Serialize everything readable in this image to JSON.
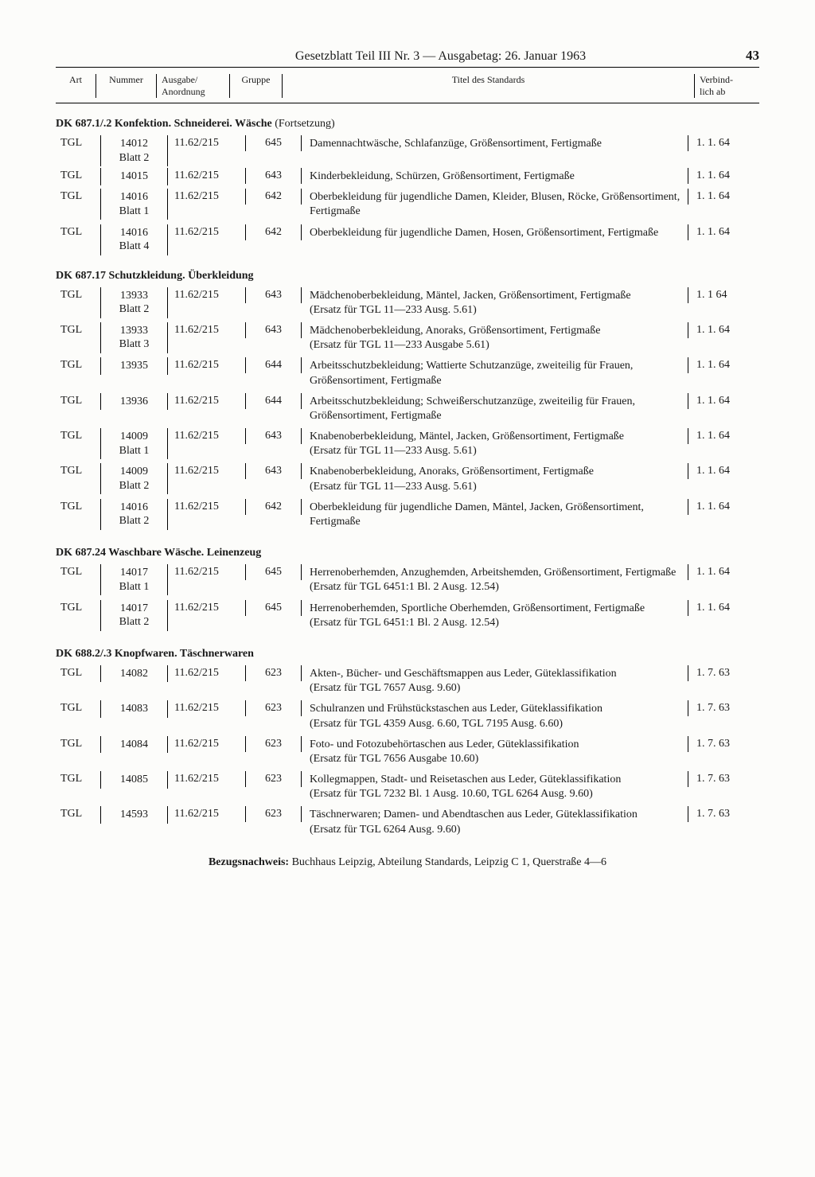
{
  "header": {
    "title": "Gesetzblatt Teil III Nr. 3 — Ausgabetag: 26. Januar 1963",
    "page_number": "43"
  },
  "columns": {
    "art": "Art",
    "nummer": "Nummer",
    "ausgabe": "Ausgabe/\nAnordnung",
    "gruppe": "Gruppe",
    "titel": "Titel des Standards",
    "verbind": "Verbind-\nlich ab"
  },
  "sections": [
    {
      "title": "DK 687.1/.2 Konfektion. Schneiderei. Wäsche",
      "cont": " (Fortsetzung)",
      "rows": [
        {
          "art": "TGL",
          "nummer": "14012\nBlatt 2",
          "ausgabe": "11.62/215",
          "gruppe": "645",
          "titel": "Damennachtwäsche, Schlafanzüge, Größensortiment, Fertigmaße",
          "verbind": "1. 1. 64"
        },
        {
          "art": "TGL",
          "nummer": "14015",
          "ausgabe": "11.62/215",
          "gruppe": "643",
          "titel": "Kinderbekleidung, Schürzen, Größensortiment, Fertigmaße",
          "verbind": "1. 1. 64"
        },
        {
          "art": "TGL",
          "nummer": "14016\nBlatt 1",
          "ausgabe": "11.62/215",
          "gruppe": "642",
          "titel": "Oberbekleidung für jugendliche Damen, Kleider, Blusen, Röcke, Größensortiment, Fertigmaße",
          "verbind": "1. 1. 64"
        },
        {
          "art": "TGL",
          "nummer": "14016\nBlatt 4",
          "ausgabe": "11.62/215",
          "gruppe": "642",
          "titel": "Oberbekleidung für jugendliche Damen, Hosen, Größensortiment, Fertigmaße",
          "verbind": "1. 1. 64"
        }
      ]
    },
    {
      "title": "DK 687.17 Schutzkleidung. Überkleidung",
      "cont": "",
      "rows": [
        {
          "art": "TGL",
          "nummer": "13933\nBlatt 2",
          "ausgabe": "11.62/215",
          "gruppe": "643",
          "titel": "Mädchenoberbekleidung, Mäntel, Jacken, Größensortiment, Fertigmaße\n(Ersatz für TGL 11—233 Ausg. 5.61)",
          "verbind": "1. 1  64"
        },
        {
          "art": "TGL",
          "nummer": "13933\nBlatt 3",
          "ausgabe": "11.62/215",
          "gruppe": "643",
          "titel": "Mädchenoberbekleidung, Anoraks, Größensortiment, Fertigmaße\n(Ersatz für TGL  11—233 Ausgabe 5.61)",
          "verbind": "1. 1. 64"
        },
        {
          "art": "TGL",
          "nummer": "13935",
          "ausgabe": "11.62/215",
          "gruppe": "644",
          "titel": "Arbeitsschutzbekleidung; Wattierte Schutzanzüge, zweiteilig für Frauen, Größensortiment, Fertigmaße",
          "verbind": "1. 1. 64"
        },
        {
          "art": "TGL",
          "nummer": "13936",
          "ausgabe": "11.62/215",
          "gruppe": "644",
          "titel": "Arbeitsschutzbekleidung; Schweißerschutzanzüge, zweiteilig für Frauen, Größensortiment, Fertigmaße",
          "verbind": "1. 1. 64"
        },
        {
          "art": "TGL",
          "nummer": "14009\nBlatt 1",
          "ausgabe": "11.62/215",
          "gruppe": "643",
          "titel": "Knabenoberbekleidung, Mäntel, Jacken, Größensortiment, Fertigmaße\n(Ersatz für TGL 11—233 Ausg. 5.61)",
          "verbind": "1. 1. 64"
        },
        {
          "art": "TGL",
          "nummer": "14009\nBlatt 2",
          "ausgabe": "11.62/215",
          "gruppe": "643",
          "titel": "Knabenoberbekleidung, Anoraks, Größensortiment, Fertigmaße\n(Ersatz für TGL 11—233 Ausg. 5.61)",
          "verbind": "1. 1. 64"
        },
        {
          "art": "TGL",
          "nummer": "14016\nBlatt 2",
          "ausgabe": "11.62/215",
          "gruppe": "642",
          "titel": "Oberbekleidung für jugendliche Damen, Mäntel, Jacken, Größensortiment, Fertigmaße",
          "verbind": "1. 1. 64"
        }
      ]
    },
    {
      "title": "DK 687.24 Waschbare Wäsche. Leinenzeug",
      "cont": "",
      "rows": [
        {
          "art": "TGL",
          "nummer": "14017\nBlatt 1",
          "ausgabe": "11.62/215",
          "gruppe": "645",
          "titel": "Herrenoberhemden, Anzughemden, Arbeitshemden, Größensortiment, Fertigmaße\n(Ersatz für TGL 6451:1 Bl. 2 Ausg. 12.54)",
          "verbind": "1. 1. 64"
        },
        {
          "art": "TGL",
          "nummer": "14017\nBlatt 2",
          "ausgabe": "11.62/215",
          "gruppe": "645",
          "titel": "Herrenoberhemden, Sportliche Oberhemden, Größensortiment, Fertigmaße\n(Ersatz für TGL 6451:1 Bl. 2 Ausg. 12.54)",
          "verbind": "1. 1. 64"
        }
      ]
    },
    {
      "title": "DK 688.2/.3 Knopfwaren. Täschnerwaren",
      "cont": "",
      "rows": [
        {
          "art": "TGL",
          "nummer": "14082",
          "ausgabe": "11.62/215",
          "gruppe": "623",
          "titel": "Akten-, Bücher- und Geschäftsmappen aus Leder, Güteklassifikation\n(Ersatz für TGL 7657 Ausg. 9.60)",
          "verbind": "1. 7. 63"
        },
        {
          "art": "TGL",
          "nummer": "14083",
          "ausgabe": "11.62/215",
          "gruppe": "623",
          "titel": "Schulranzen und Frühstückstaschen aus Leder, Güteklassifikation\n(Ersatz für TGL 4359 Ausg. 6.60, TGL 7195 Ausg. 6.60)",
          "verbind": "1. 7. 63"
        },
        {
          "art": "TGL",
          "nummer": "14084",
          "ausgabe": "11.62/215",
          "gruppe": "623",
          "titel": "Foto- und Fotozubehörtaschen aus Leder, Güteklassifikation\n(Ersatz für TGL 7656 Ausgabe 10.60)",
          "verbind": "1. 7. 63"
        },
        {
          "art": "TGL",
          "nummer": "14085",
          "ausgabe": "11.62/215",
          "gruppe": "623",
          "titel": "Kollegmappen, Stadt- und Reisetaschen aus Leder, Güteklassifikation\n(Ersatz für TGL 7232 Bl. 1 Ausg. 10.60, TGL 6264 Ausg. 9.60)",
          "verbind": "1. 7. 63"
        },
        {
          "art": "TGL",
          "nummer": "14593",
          "ausgabe": "11.62/215",
          "gruppe": "623",
          "titel": "Täschnerwaren; Damen- und Abendtaschen aus Leder, Güteklassifikation\n(Ersatz für TGL 6264 Ausg. 9.60)",
          "verbind": "1. 7. 63"
        }
      ]
    }
  ],
  "footer": {
    "label": "Bezugsnachweis:",
    "text": " Buchhaus Leipzig, Abteilung Standards, Leipzig C 1, Querstraße 4—6"
  }
}
